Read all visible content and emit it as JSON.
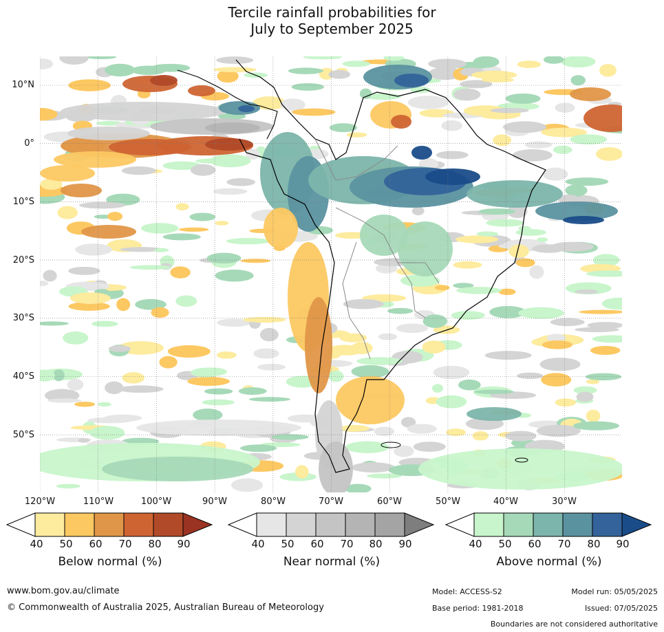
{
  "title": {
    "line1": "Tercile rainfall probabilities for",
    "line2": "July to September 2025"
  },
  "map": {
    "lat_labels": [
      "10°N",
      "0°",
      "10°S",
      "20°S",
      "30°S",
      "40°S",
      "50°S"
    ],
    "lon_labels": [
      "120°W",
      "110°W",
      "100°W",
      "90°W",
      "80°W",
      "70°W",
      "60°W",
      "50°W",
      "40°W",
      "30°W"
    ],
    "colors": {
      "below": [
        "#fdeb9e",
        "#fcc862",
        "#e09648",
        "#cf6433",
        "#b14a28",
        "#9a3322"
      ],
      "near": [
        "#e6e6e6",
        "#d4d4d4",
        "#c4c4c4",
        "#b4b4b4",
        "#a4a4a4",
        "#7e7e7e"
      ],
      "above": [
        "#c8f5cb",
        "#a6d9b8",
        "#7cb5ab",
        "#5b92a0",
        "#33639a",
        "#1a4c89"
      ]
    }
  },
  "legend": {
    "below": {
      "title": "Below normal (%)",
      "ticks": [
        "40",
        "50",
        "60",
        "70",
        "80",
        "90"
      ]
    },
    "near": {
      "title": "Near normal (%)",
      "ticks": [
        "40",
        "50",
        "60",
        "70",
        "80",
        "90"
      ]
    },
    "above": {
      "title": "Above normal (%)",
      "ticks": [
        "40",
        "50",
        "60",
        "70",
        "80",
        "90"
      ]
    }
  },
  "footer": {
    "website": "www.bom.gov.au/climate",
    "copyright": "© Commonwealth of Australia 2025, Australian Bureau of Meteorology",
    "model": "Model: ACCESS-S2",
    "base_period": "Base period: 1981-2018",
    "model_run": "Model run: 05/05/2025",
    "issued": "Issued: 07/05/2025",
    "disclaimer": "Boundaries are not considered authoritative"
  }
}
